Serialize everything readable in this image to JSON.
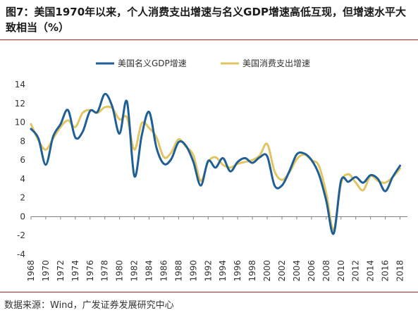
{
  "title": "图7：美国1970年以来，个人消费支出增速与名义GDP增速高低互现，但增速水平大致相当（%）",
  "source": "数据来源：Wind，广发证券发展研究中心",
  "colors": {
    "gdp": "#1f5f96",
    "pce": "#e2c563",
    "axis": "#7f7f7f"
  },
  "chart_data": {
    "type": "line",
    "xlabel": "",
    "ylabel": "",
    "xlim": [
      1968,
      2019
    ],
    "ylim": [
      -4,
      14
    ],
    "yticks": [
      -4,
      -2,
      0,
      2,
      4,
      6,
      8,
      10,
      12,
      14
    ],
    "xticks": [
      1968,
      1970,
      1972,
      1974,
      1976,
      1978,
      1980,
      1982,
      1984,
      1986,
      1988,
      1990,
      1992,
      1994,
      1996,
      1998,
      2000,
      2002,
      2004,
      2006,
      2008,
      2010,
      2012,
      2014,
      2016,
      2018
    ],
    "legend_position": "top",
    "series": [
      {
        "name": "美国名义GDP增速",
        "color_key": "gdp",
        "x": [
          1968,
          1969,
          1970,
          1971,
          1972,
          1973,
          1974,
          1975,
          1976,
          1977,
          1978,
          1979,
          1980,
          1981,
          1982,
          1983,
          1984,
          1985,
          1986,
          1987,
          1988,
          1989,
          1990,
          1991,
          1992,
          1993,
          1994,
          1995,
          1996,
          1997,
          1998,
          1999,
          2000,
          2001,
          2002,
          2003,
          2004,
          2005,
          2006,
          2007,
          2008,
          2009,
          2010,
          2011,
          2012,
          2013,
          2014,
          2015,
          2016,
          2017,
          2018
        ],
        "values": [
          9.3,
          8.3,
          5.5,
          8.5,
          9.8,
          11.3,
          8.4,
          9.0,
          11.2,
          11.1,
          13.0,
          11.7,
          8.8,
          12.2,
          4.3,
          8.6,
          11.1,
          7.3,
          5.6,
          6.1,
          7.9,
          7.5,
          5.8,
          3.3,
          5.9,
          5.2,
          6.2,
          4.8,
          5.8,
          6.2,
          5.7,
          6.3,
          6.4,
          3.3,
          3.3,
          4.8,
          6.6,
          6.7,
          6.0,
          4.5,
          1.7,
          -1.8,
          3.8,
          3.7,
          4.2,
          3.6,
          4.4,
          4.0,
          2.7,
          4.2,
          5.4
        ]
      },
      {
        "name": "美国消费支出增速",
        "color_key": "pce",
        "x": [
          1968,
          1969,
          1970,
          1971,
          1972,
          1973,
          1974,
          1975,
          1976,
          1977,
          1978,
          1979,
          1980,
          1981,
          1982,
          1983,
          1984,
          1985,
          1986,
          1987,
          1988,
          1989,
          1990,
          1991,
          1992,
          1993,
          1994,
          1995,
          1996,
          1997,
          1998,
          1999,
          2000,
          2001,
          2002,
          2003,
          2004,
          2005,
          2006,
          2007,
          2008,
          2009,
          2010,
          2011,
          2012,
          2013,
          2014,
          2015,
          2016,
          2017,
          2018
        ],
        "values": [
          9.8,
          8.1,
          7.1,
          8.3,
          9.5,
          10.2,
          9.5,
          11.0,
          11.3,
          11.0,
          11.6,
          11.5,
          10.3,
          10.5,
          7.1,
          9.9,
          9.4,
          8.4,
          6.3,
          6.8,
          8.2,
          7.4,
          6.5,
          3.8,
          5.8,
          6.3,
          5.5,
          5.2,
          5.6,
          5.8,
          6.0,
          6.5,
          7.7,
          4.8,
          3.9,
          4.7,
          6.1,
          6.6,
          6.0,
          5.4,
          2.5,
          -1.4,
          3.5,
          4.5,
          3.6,
          2.8,
          4.3,
          3.8,
          3.6,
          4.2,
          5.1
        ]
      }
    ]
  }
}
